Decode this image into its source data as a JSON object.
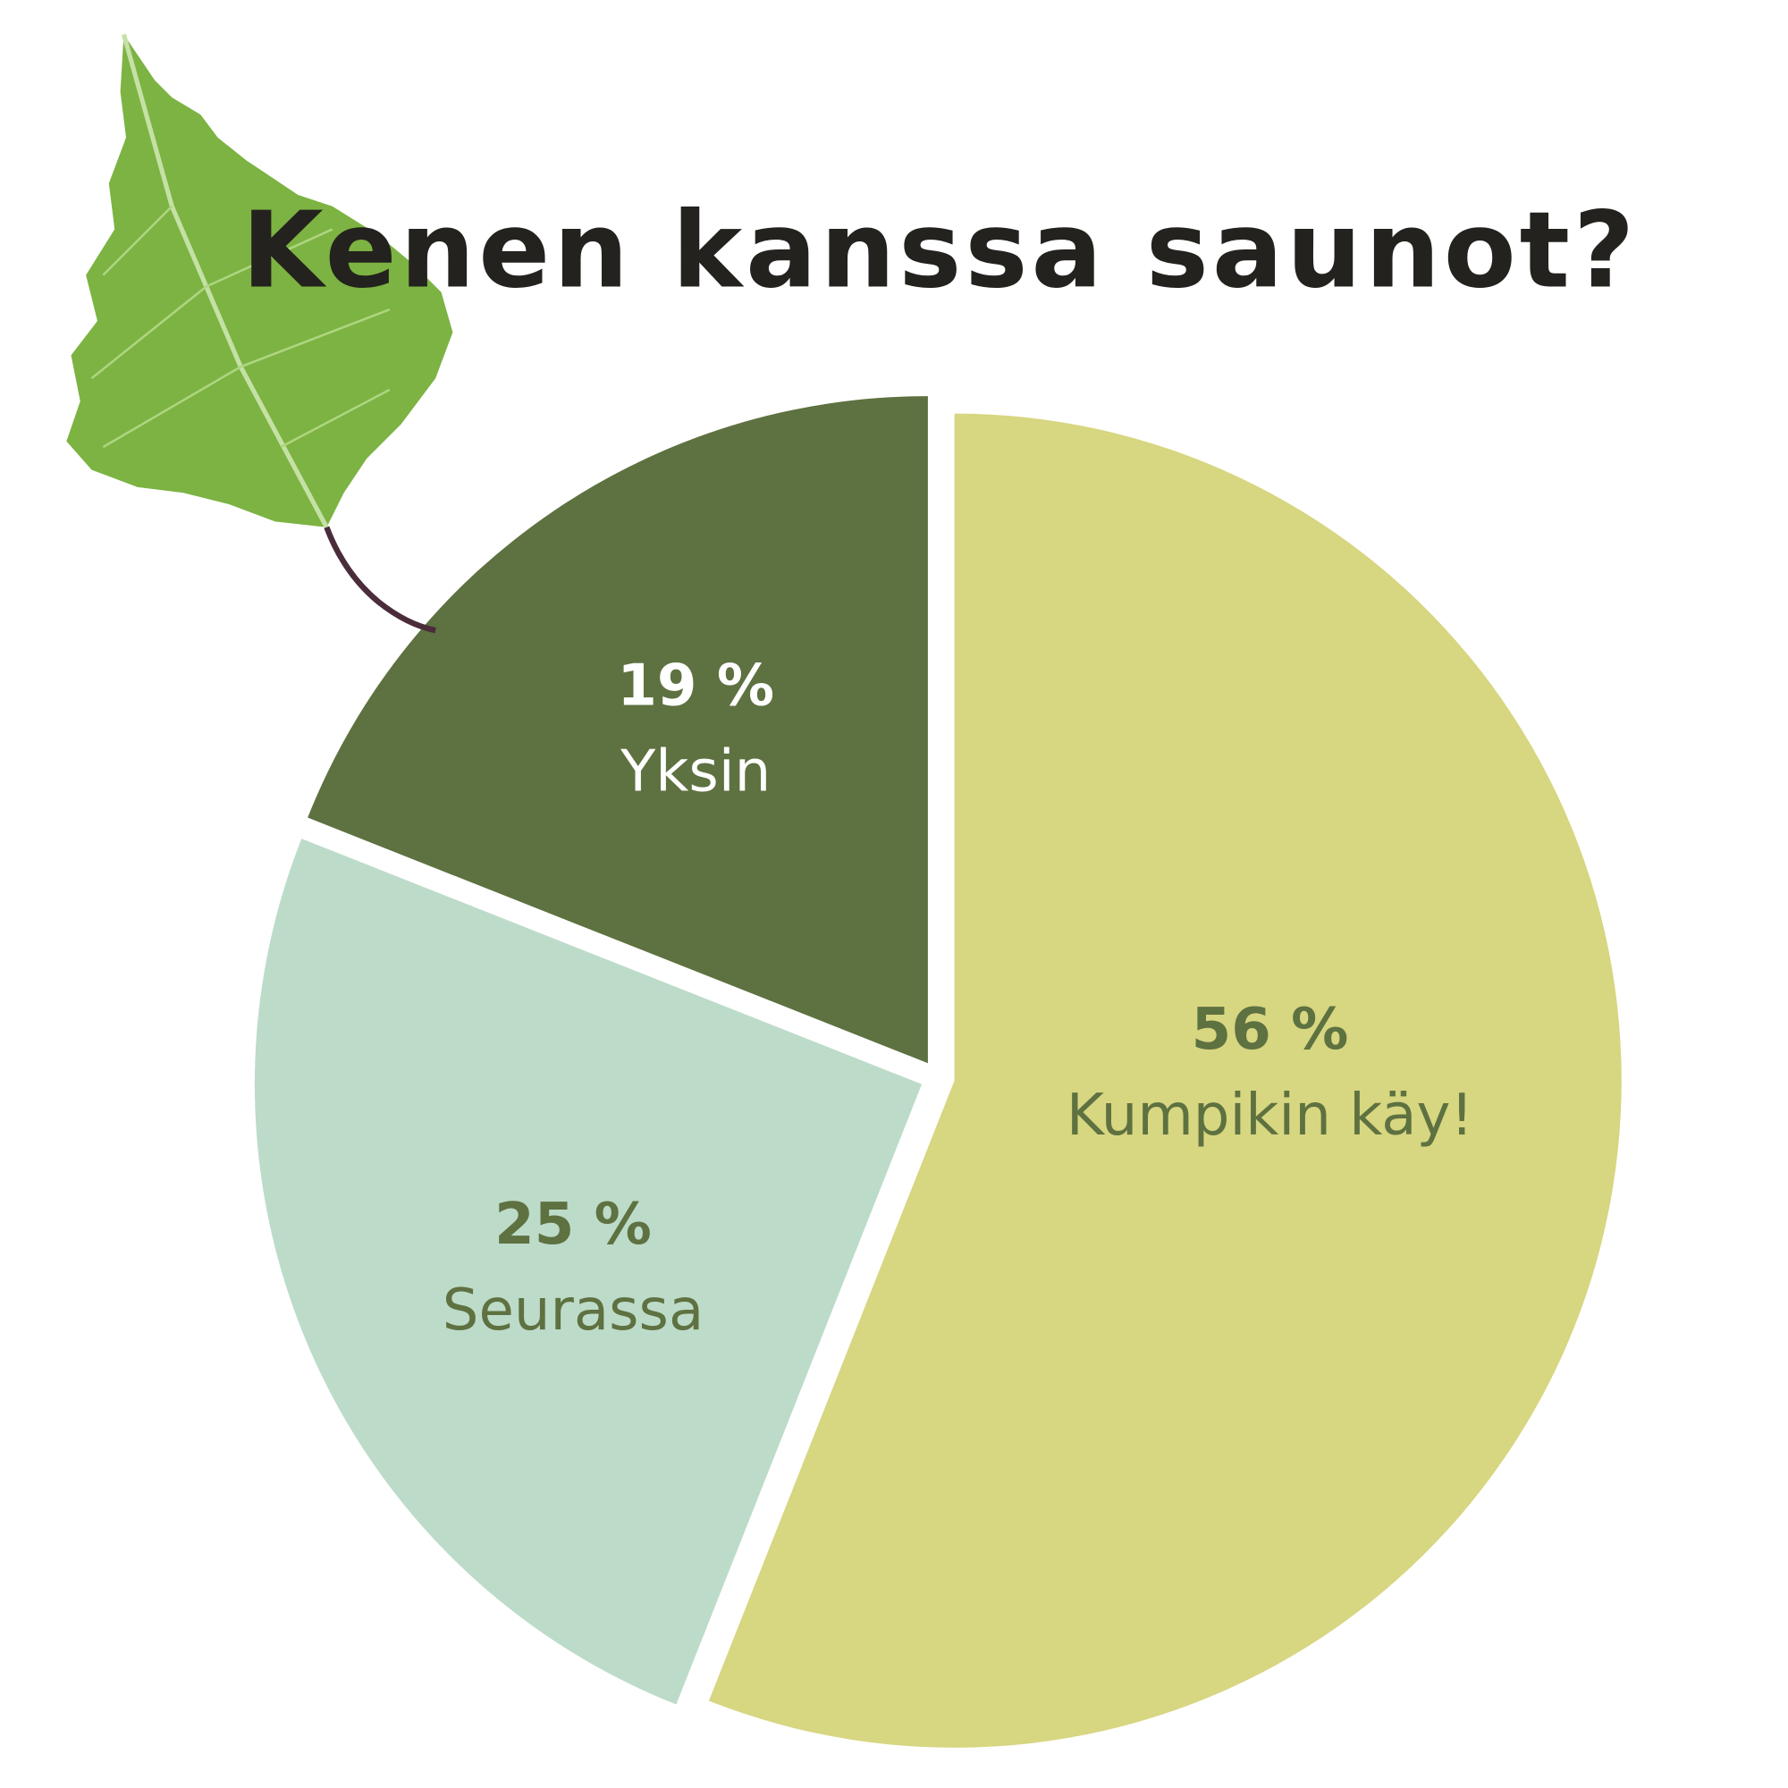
{
  "chart_data": {
    "type": "pie",
    "title": "Kenen kanssa saunot?",
    "start": "top",
    "direction": "clockwise",
    "slices": [
      {
        "label": "Kumpikin käy!",
        "value": 56,
        "value_label": "56 %",
        "color": "#d7d681",
        "text_color": "#5e7140"
      },
      {
        "label": "Seurassa",
        "value": 25,
        "value_label": "25 %",
        "color": "#bddbc9",
        "text_color": "#5e7140"
      },
      {
        "label": "Yksin",
        "value": 19,
        "value_label": "19 %",
        "color": "#5e7140",
        "text_color": "#ffffff"
      }
    ]
  },
  "decoration": {
    "icon": "birch-leaf-icon",
    "color": "#7cb342"
  }
}
